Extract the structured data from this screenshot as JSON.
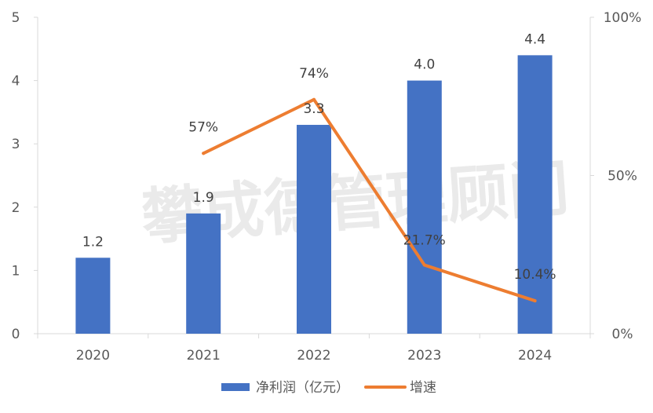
{
  "watermark": "攀成德管理顾问",
  "colors": {
    "bar": "#4472C4",
    "line": "#ED7D31",
    "axis": "#D9D9D9",
    "text": "#595959"
  },
  "chart_data": {
    "type": "bar",
    "categories": [
      "2020",
      "2021",
      "2022",
      "2023",
      "2024"
    ],
    "series": [
      {
        "name": "净利润（亿元）",
        "type": "bar",
        "axis": "left",
        "values": [
          1.2,
          1.9,
          3.3,
          4.0,
          4.4
        ],
        "labels": [
          "1.2",
          "1.9",
          "3.3",
          "4.0",
          "4.4"
        ]
      },
      {
        "name": "增速",
        "type": "line",
        "axis": "right",
        "values": [
          null,
          57,
          74,
          21.7,
          10.4
        ],
        "labels": [
          "",
          "57%",
          "74%",
          "21.7%",
          "10.4%"
        ]
      }
    ],
    "y_left": {
      "min": 0,
      "max": 5,
      "ticks": [
        "0",
        "1",
        "2",
        "3",
        "4",
        "5"
      ]
    },
    "y_right": {
      "min": 0,
      "max": 100,
      "ticks": [
        "0%",
        "50%",
        "100%"
      ],
      "tick_values": [
        0,
        50,
        100
      ]
    },
    "grid": false,
    "legend_position": "bottom"
  }
}
